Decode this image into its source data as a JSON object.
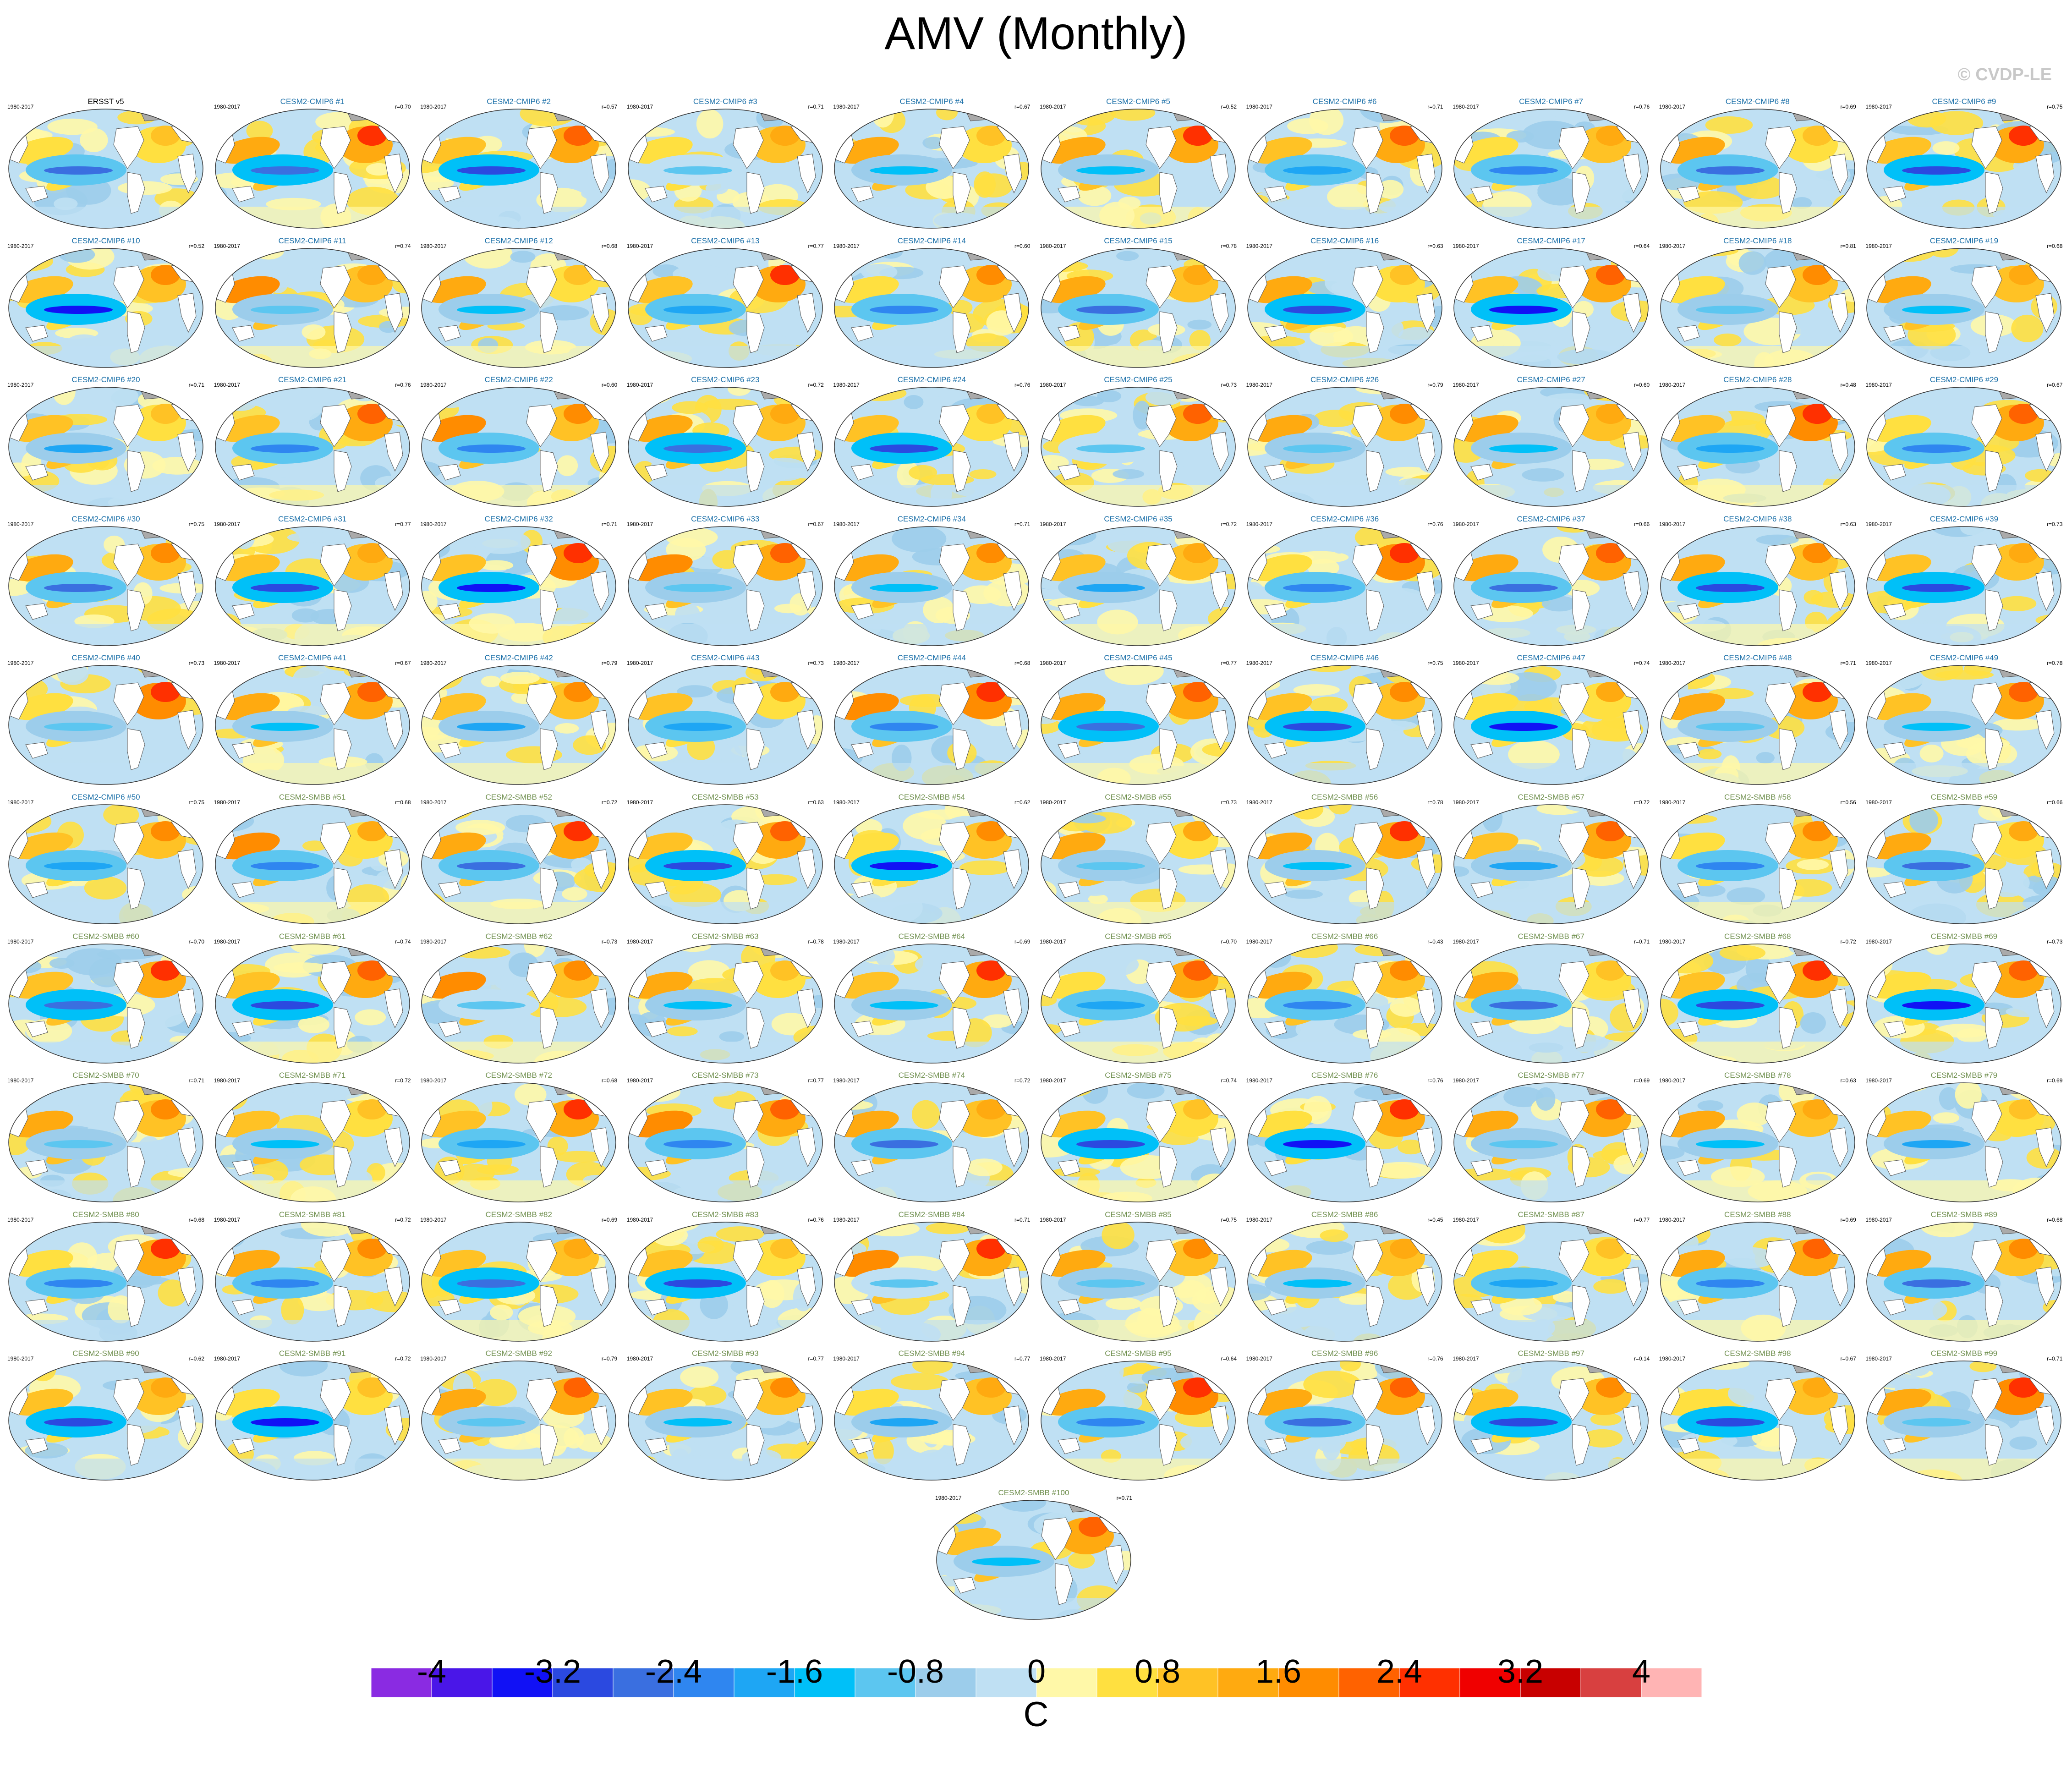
{
  "title": "AMV (Monthly)",
  "copyright": "© CVDP-LE",
  "period": "1980-2017",
  "colors": {
    "cmip6_title": "#1a6fa8",
    "smbb_title": "#6f8f4e",
    "obs_title": "#000000",
    "land": "#ffffff",
    "coast": "#555555"
  },
  "chart_data": {
    "type": "heatmap",
    "description_free": "",
    "panels": [
      {
        "title": "ERSST v5",
        "r": ""
      },
      {
        "title": "CESM2-CMIP6 #1",
        "r": "r=0.70"
      },
      {
        "title": "CESM2-CMIP6 #2",
        "r": "r=0.57"
      },
      {
        "title": "CESM2-CMIP6 #3",
        "r": "r=0.71"
      },
      {
        "title": "CESM2-CMIP6 #4",
        "r": "r=0.67"
      },
      {
        "title": "CESM2-CMIP6 #5",
        "r": "r=0.52"
      },
      {
        "title": "CESM2-CMIP6 #6",
        "r": "r=0.71"
      },
      {
        "title": "CESM2-CMIP6 #7",
        "r": "r=0.76"
      },
      {
        "title": "CESM2-CMIP6 #8",
        "r": "r=0.69"
      },
      {
        "title": "CESM2-CMIP6 #9",
        "r": "r=0.75"
      },
      {
        "title": "CESM2-CMIP6 #10",
        "r": "r=0.52"
      },
      {
        "title": "CESM2-CMIP6 #11",
        "r": "r=0.74"
      },
      {
        "title": "CESM2-CMIP6 #12",
        "r": "r=0.68"
      },
      {
        "title": "CESM2-CMIP6 #13",
        "r": "r=0.77"
      },
      {
        "title": "CESM2-CMIP6 #14",
        "r": "r=0.60"
      },
      {
        "title": "CESM2-CMIP6 #15",
        "r": "r=0.78"
      },
      {
        "title": "CESM2-CMIP6 #16",
        "r": "r=0.63"
      },
      {
        "title": "CESM2-CMIP6 #17",
        "r": "r=0.64"
      },
      {
        "title": "CESM2-CMIP6 #18",
        "r": "r=0.81"
      },
      {
        "title": "CESM2-CMIP6 #19",
        "r": "r=0.68"
      },
      {
        "title": "CESM2-CMIP6 #20",
        "r": "r=0.71"
      },
      {
        "title": "CESM2-CMIP6 #21",
        "r": "r=0.76"
      },
      {
        "title": "CESM2-CMIP6 #22",
        "r": "r=0.60"
      },
      {
        "title": "CESM2-CMIP6 #23",
        "r": "r=0.72"
      },
      {
        "title": "CESM2-CMIP6 #24",
        "r": "r=0.76"
      },
      {
        "title": "CESM2-CMIP6 #25",
        "r": "r=0.73"
      },
      {
        "title": "CESM2-CMIP6 #26",
        "r": "r=0.79"
      },
      {
        "title": "CESM2-CMIP6 #27",
        "r": "r=0.60"
      },
      {
        "title": "CESM2-CMIP6 #28",
        "r": "r=0.48"
      },
      {
        "title": "CESM2-CMIP6 #29",
        "r": "r=0.67"
      },
      {
        "title": "CESM2-CMIP6 #30",
        "r": "r=0.75"
      },
      {
        "title": "CESM2-CMIP6 #31",
        "r": "r=0.77"
      },
      {
        "title": "CESM2-CMIP6 #32",
        "r": "r=0.71"
      },
      {
        "title": "CESM2-CMIP6 #33",
        "r": "r=0.67"
      },
      {
        "title": "CESM2-CMIP6 #34",
        "r": "r=0.71"
      },
      {
        "title": "CESM2-CMIP6 #35",
        "r": "r=0.72"
      },
      {
        "title": "CESM2-CMIP6 #36",
        "r": "r=0.76"
      },
      {
        "title": "CESM2-CMIP6 #37",
        "r": "r=0.66"
      },
      {
        "title": "CESM2-CMIP6 #38",
        "r": "r=0.63"
      },
      {
        "title": "CESM2-CMIP6 #39",
        "r": "r=0.73"
      },
      {
        "title": "CESM2-CMIP6 #40",
        "r": "r=0.73"
      },
      {
        "title": "CESM2-CMIP6 #41",
        "r": "r=0.67"
      },
      {
        "title": "CESM2-CMIP6 #42",
        "r": "r=0.79"
      },
      {
        "title": "CESM2-CMIP6 #43",
        "r": "r=0.73"
      },
      {
        "title": "CESM2-CMIP6 #44",
        "r": "r=0.68"
      },
      {
        "title": "CESM2-CMIP6 #45",
        "r": "r=0.77"
      },
      {
        "title": "CESM2-CMIP6 #46",
        "r": "r=0.75"
      },
      {
        "title": "CESM2-CMIP6 #47",
        "r": "r=0.74"
      },
      {
        "title": "CESM2-CMIP6 #48",
        "r": "r=0.71"
      },
      {
        "title": "CESM2-CMIP6 #49",
        "r": "r=0.78"
      },
      {
        "title": "CESM2-CMIP6 #50",
        "r": "r=0.75"
      },
      {
        "title": "CESM2-SMBB #51",
        "r": "r=0.68"
      },
      {
        "title": "CESM2-SMBB #52",
        "r": "r=0.72"
      },
      {
        "title": "CESM2-SMBB #53",
        "r": "r=0.63"
      },
      {
        "title": "CESM2-SMBB #54",
        "r": "r=0.62"
      },
      {
        "title": "CESM2-SMBB #55",
        "r": "r=0.73"
      },
      {
        "title": "CESM2-SMBB #56",
        "r": "r=0.78"
      },
      {
        "title": "CESM2-SMBB #57",
        "r": "r=0.72"
      },
      {
        "title": "CESM2-SMBB #58",
        "r": "r=0.56"
      },
      {
        "title": "CESM2-SMBB #59",
        "r": "r=0.66"
      },
      {
        "title": "CESM2-SMBB #60",
        "r": "r=0.70"
      },
      {
        "title": "CESM2-SMBB #61",
        "r": "r=0.74"
      },
      {
        "title": "CESM2-SMBB #62",
        "r": "r=0.73"
      },
      {
        "title": "CESM2-SMBB #63",
        "r": "r=0.78"
      },
      {
        "title": "CESM2-SMBB #64",
        "r": "r=0.69"
      },
      {
        "title": "CESM2-SMBB #65",
        "r": "r=0.70"
      },
      {
        "title": "CESM2-SMBB #66",
        "r": "r=0.43"
      },
      {
        "title": "CESM2-SMBB #67",
        "r": "r=0.71"
      },
      {
        "title": "CESM2-SMBB #68",
        "r": "r=0.72"
      },
      {
        "title": "CESM2-SMBB #69",
        "r": "r=0.73"
      },
      {
        "title": "CESM2-SMBB #70",
        "r": "r=0.71"
      },
      {
        "title": "CESM2-SMBB #71",
        "r": "r=0.72"
      },
      {
        "title": "CESM2-SMBB #72",
        "r": "r=0.68"
      },
      {
        "title": "CESM2-SMBB #73",
        "r": "r=0.77"
      },
      {
        "title": "CESM2-SMBB #74",
        "r": "r=0.72"
      },
      {
        "title": "CESM2-SMBB #75",
        "r": "r=0.74"
      },
      {
        "title": "CESM2-SMBB #76",
        "r": "r=0.76"
      },
      {
        "title": "CESM2-SMBB #77",
        "r": "r=0.69"
      },
      {
        "title": "CESM2-SMBB #78",
        "r": "r=0.63"
      },
      {
        "title": "CESM2-SMBB #79",
        "r": "r=0.69"
      },
      {
        "title": "CESM2-SMBB #80",
        "r": "r=0.68"
      },
      {
        "title": "CESM2-SMBB #81",
        "r": "r=0.72"
      },
      {
        "title": "CESM2-SMBB #82",
        "r": "r=0.69"
      },
      {
        "title": "CESM2-SMBB #83",
        "r": "r=0.76"
      },
      {
        "title": "CESM2-SMBB #84",
        "r": "r=0.71"
      },
      {
        "title": "CESM2-SMBB #85",
        "r": "r=0.75"
      },
      {
        "title": "CESM2-SMBB #86",
        "r": "r=0.45"
      },
      {
        "title": "CESM2-SMBB #87",
        "r": "r=0.77"
      },
      {
        "title": "CESM2-SMBB #88",
        "r": "r=0.69"
      },
      {
        "title": "CESM2-SMBB #89",
        "r": "r=0.68"
      },
      {
        "title": "CESM2-SMBB #90",
        "r": "r=0.62"
      },
      {
        "title": "CESM2-SMBB #91",
        "r": "r=0.72"
      },
      {
        "title": "CESM2-SMBB #92",
        "r": "r=0.79"
      },
      {
        "title": "CESM2-SMBB #93",
        "r": "r=0.77"
      },
      {
        "title": "CESM2-SMBB #94",
        "r": "r=0.77"
      },
      {
        "title": "CESM2-SMBB #95",
        "r": "r=0.64"
      },
      {
        "title": "CESM2-SMBB #96",
        "r": "r=0.76"
      },
      {
        "title": "CESM2-SMBB #97",
        "r": "r=0.14"
      },
      {
        "title": "CESM2-SMBB #98",
        "r": "r=0.67"
      },
      {
        "title": "CESM2-SMBB #99",
        "r": "r=0.71"
      },
      {
        "title": "CESM2-SMBB #100",
        "r": "r=0.71"
      }
    ],
    "colorbar": {
      "unit": "C",
      "range": [
        -4.4,
        4.4
      ],
      "step": 0.4,
      "tick_values": [
        -4,
        -3.2,
        -2.4,
        -1.6,
        -0.8,
        0,
        0.8,
        1.6,
        2.4,
        3.2,
        4
      ],
      "tick_labels": [
        "-4",
        "-3.2",
        "-2.4",
        "-1.6",
        "-0.8",
        "0",
        "0.8",
        "1.6",
        "2.4",
        "3.2",
        "4"
      ],
      "colors": [
        "#8a2be2",
        "#4a16e8",
        "#1111f5",
        "#2b49e0",
        "#3a6fe0",
        "#2f86f0",
        "#1ea6f4",
        "#00c0f8",
        "#5cc6f0",
        "#9ccdeb",
        "#bfe0f3",
        "#fff8a8",
        "#ffe040",
        "#ffc225",
        "#ffaa10",
        "#ff8c00",
        "#ff6200",
        "#ff3000",
        "#f00000",
        "#c80000",
        "#d84040",
        "#ffb4b4"
      ]
    }
  }
}
